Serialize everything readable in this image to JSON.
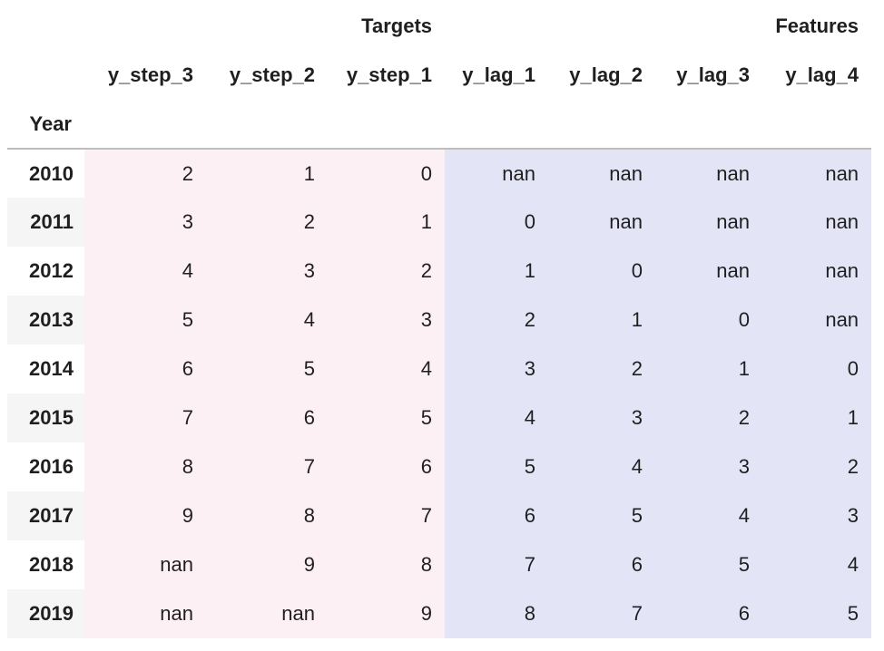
{
  "table": {
    "group_headers": {
      "targets": "Targets",
      "features": "Features"
    },
    "columns": [
      "y_step_3",
      "y_step_2",
      "y_step_1",
      "y_lag_1",
      "y_lag_2",
      "y_lag_3",
      "y_lag_4"
    ],
    "index_name": "Year",
    "rows": [
      {
        "year": "2010",
        "values": [
          "2",
          "1",
          "0",
          "nan",
          "nan",
          "nan",
          "nan"
        ]
      },
      {
        "year": "2011",
        "values": [
          "3",
          "2",
          "1",
          "0",
          "nan",
          "nan",
          "nan"
        ]
      },
      {
        "year": "2012",
        "values": [
          "4",
          "3",
          "2",
          "1",
          "0",
          "nan",
          "nan"
        ]
      },
      {
        "year": "2013",
        "values": [
          "5",
          "4",
          "3",
          "2",
          "1",
          "0",
          "nan"
        ]
      },
      {
        "year": "2014",
        "values": [
          "6",
          "5",
          "4",
          "3",
          "2",
          "1",
          "0"
        ]
      },
      {
        "year": "2015",
        "values": [
          "7",
          "6",
          "5",
          "4",
          "3",
          "2",
          "1"
        ]
      },
      {
        "year": "2016",
        "values": [
          "8",
          "7",
          "6",
          "5",
          "4",
          "3",
          "2"
        ]
      },
      {
        "year": "2017",
        "values": [
          "9",
          "8",
          "7",
          "6",
          "5",
          "4",
          "3"
        ]
      },
      {
        "year": "2018",
        "values": [
          "nan",
          "9",
          "8",
          "7",
          "6",
          "5",
          "4"
        ]
      },
      {
        "year": "2019",
        "values": [
          "nan",
          "nan",
          "9",
          "8",
          "7",
          "6",
          "5"
        ]
      }
    ],
    "colors": {
      "targets_background": "#fdf0f4",
      "features_background": "#e4e4f7"
    }
  }
}
